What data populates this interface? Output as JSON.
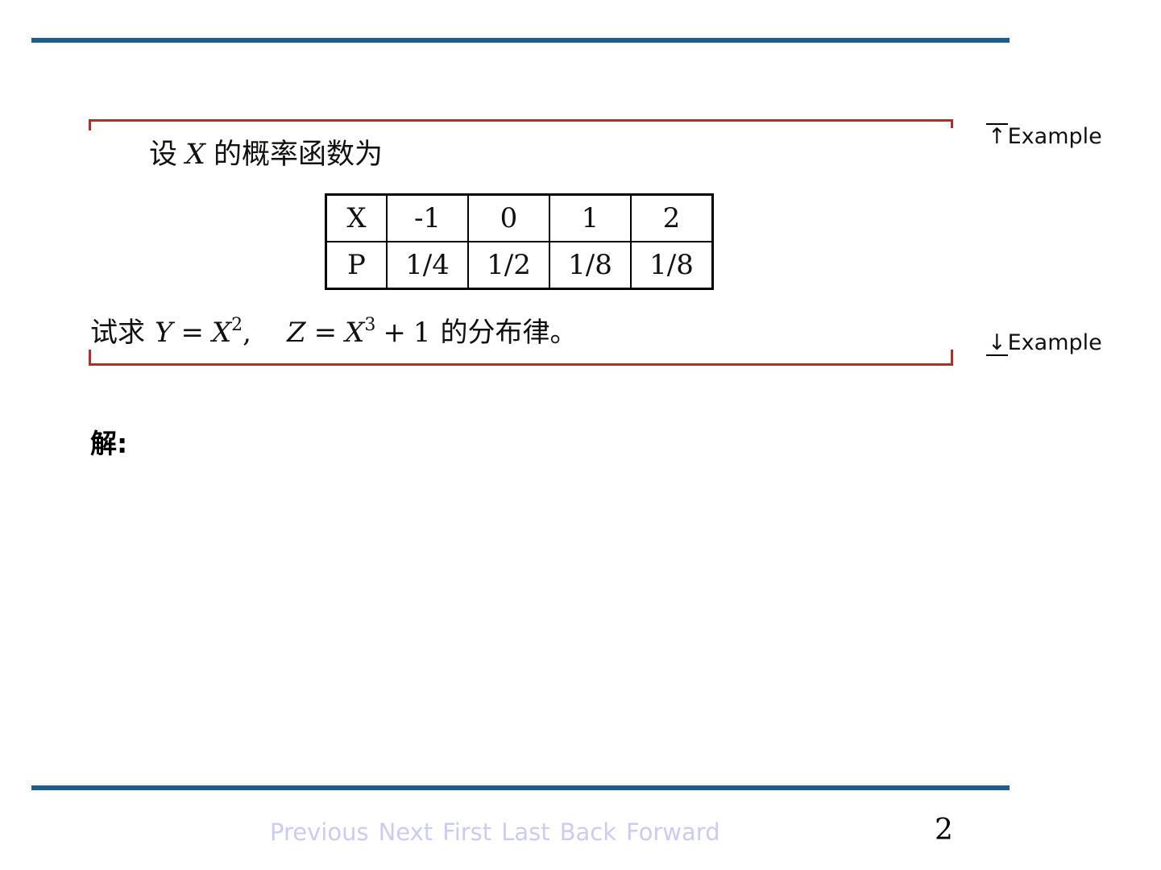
{
  "slide": {
    "intro": {
      "prefix": "设",
      "variable": "X",
      "suffix": "的概率函数为"
    },
    "table": {
      "rows": [
        {
          "header": "X",
          "values": [
            "-1",
            "0",
            "1",
            "2"
          ]
        },
        {
          "header": "P",
          "values": [
            "1/4",
            "1/2",
            "1/8",
            "1/8"
          ]
        }
      ]
    },
    "problem": {
      "prefix": "试求",
      "y_var": "Y",
      "eq1": "=",
      "x_var1": "X",
      "sup1": "2",
      "comma": ",",
      "z_var": "Z",
      "eq2": "=",
      "x_var2": "X",
      "sup2": "3",
      "plus": "+",
      "one": "1",
      "suffix": "的分布律。"
    },
    "solution_label": "解:"
  },
  "side_labels": {
    "top_arrow": "↑",
    "top_label": "Example",
    "bottom_arrow": "↓",
    "bottom_label": "Example"
  },
  "footer": {
    "nav": [
      "Previous",
      "Next",
      "First",
      "Last",
      "Back",
      "Forward"
    ],
    "page_number": "2"
  },
  "colors": {
    "rule_blue": "#1c5f8d",
    "frame_red": "#a0362c",
    "nav_lavender": "#ccccf2"
  }
}
